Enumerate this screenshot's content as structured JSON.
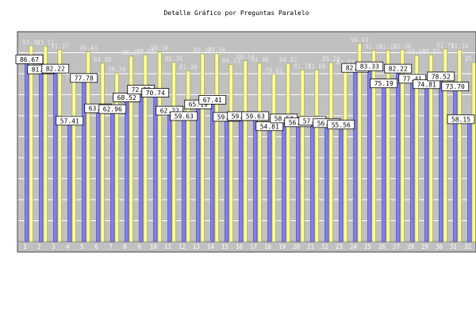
{
  "chart_data": {
    "type": "bar",
    "title": "Detalle Gráfico por Preguntas Paralelo",
    "xlabel": "",
    "ylabel": "",
    "ylim": [
      0,
      100
    ],
    "ytick_labels": [],
    "categories": [
      "1",
      "2",
      "3",
      "4",
      "5",
      "6",
      "7",
      "8",
      "9",
      "10",
      "11",
      "12",
      "13",
      "14",
      "15",
      "16",
      "17",
      "18",
      "19",
      "20",
      "21",
      "22",
      "23",
      "24",
      "25",
      "26",
      "27",
      "28",
      "29",
      "30",
      "31",
      "32"
    ],
    "series": [
      {
        "name": "",
        "color": "#8080ee",
        "values": [
          86.67,
          81.85,
          82.22,
          57.41,
          77.78,
          63.33,
          62.96,
          68.52,
          72.22,
          70.74,
          62.22,
          59.63,
          65.19,
          67.41,
          59.26,
          59.63,
          59.63,
          54.81,
          58.52,
          56.67,
          57.41,
          56.3,
          55.56,
          82.59,
          83.33,
          75.19,
          82.22,
          77.41,
          74.81,
          78.52,
          73.7,
          58.15
        ],
        "labels_shown": [
          "86.67",
          "81.85",
          "82.22",
          "57.41",
          "77.78",
          "63.33",
          "62.96",
          "68.52",
          "72.22",
          "70.74",
          "62.22",
          "59.63",
          "65.19",
          "67.41",
          "59.26",
          "59.63",
          "59.63",
          "54.81",
          "58.52",
          "56.67",
          "57.41",
          "56.30",
          "55.56",
          "82.59",
          "83.33",
          "75.19",
          "82.22",
          "77.41",
          "74.81",
          "78.52",
          "73.70",
          "58.15"
        ]
      },
      {
        "name": "",
        "color": "#ffff99",
        "values": [
          93.3,
          93.11,
          91.37,
          76.85,
          90.43,
          84.98,
          80.3,
          88.29,
          88.88,
          90.3,
          85.36,
          81.34,
          89.37,
          89.56,
          84.33,
          86.14,
          84.96,
          79.81,
          84.82,
          81.77,
          81.69,
          85.2,
          83.83,
          94.43,
          91.1,
          91.1,
          91.36,
          88.62,
          88.92,
          91.71,
          91.34,
          85.27
        ],
        "labels_shown": [
          "93.30",
          "93.11",
          "91.37",
          "76.85",
          "90.43",
          "84.98",
          "80.30",
          "88.29",
          "88.88",
          "90.30",
          "85.36",
          "81.34",
          "89.37",
          "89.56",
          "84.33",
          "86.14",
          "84.96",
          "79.81",
          "84.82",
          "81.77",
          "81.69",
          "85.20",
          "83.83",
          "94.43",
          "91.10",
          "91.10",
          "91.36",
          "88.62",
          "88.92",
          "91.71",
          "91.34",
          "85.27"
        ]
      }
    ],
    "grid": true,
    "legend": "none",
    "colors": {
      "plot_background": "#c0c0c0",
      "grid": "#ffffff",
      "label_box": "#ffffff",
      "label_text": "#000000",
      "faint_label": "#e6e6e6",
      "tick_label": "#ffffff"
    }
  }
}
